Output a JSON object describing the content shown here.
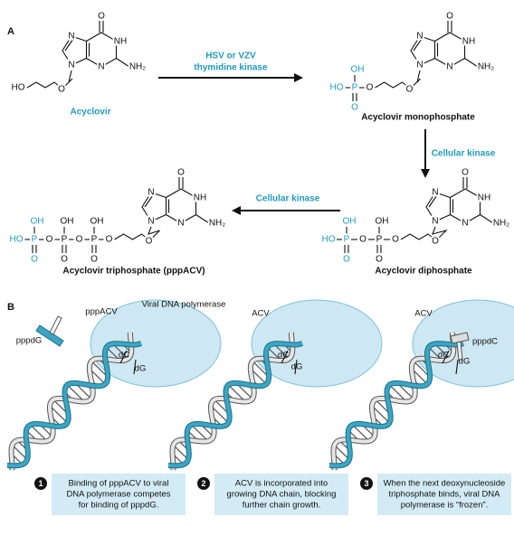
{
  "panel_a": {
    "label": "A",
    "molecules": [
      {
        "name": "Acyclovir",
        "atoms": [
          "O",
          "N",
          "NH",
          "N",
          "N",
          "NH₂",
          "HO",
          "O"
        ]
      },
      {
        "name": "Acyclovir monophosphate",
        "atoms": [
          "O",
          "N",
          "NH",
          "N",
          "N",
          "NH₂",
          "HO",
          "OH",
          "P",
          "O",
          "O",
          "O"
        ]
      },
      {
        "name": "Acyclovir diphosphate",
        "atoms": [
          "O",
          "N",
          "NH",
          "N",
          "N",
          "NH₂",
          "HO",
          "OH",
          "P",
          "O",
          "O",
          "OH",
          "P",
          "O",
          "O",
          "O"
        ]
      },
      {
        "name": "Acyclovir triphosphate (pppACV)",
        "atoms": [
          "O",
          "N",
          "NH",
          "N",
          "N",
          "NH₂",
          "HO",
          "OH",
          "P",
          "O",
          "O",
          "OH",
          "P",
          "O",
          "O",
          "OH",
          "P",
          "O",
          "O",
          "O"
        ]
      }
    ],
    "steps": [
      {
        "lines": [
          "HSV or VZV",
          "thymidine kinase"
        ]
      },
      {
        "lines": [
          "Cellular kinase"
        ]
      },
      {
        "lines": [
          "Cellular kinase"
        ]
      }
    ]
  },
  "panel_b": {
    "label": "B",
    "frames": [
      {
        "labels": [
          "pppdG",
          "pppACV",
          "Viral DNA polymerase",
          "dC",
          "dG"
        ],
        "number": 1,
        "caption": [
          "Binding of pppACV to viral",
          "DNA polymerase competes",
          "for binding of pppdG."
        ]
      },
      {
        "labels": [
          "ACV",
          "dC",
          "dG"
        ],
        "number": 2,
        "caption": [
          "ACV is incorporated into",
          "growing DNA chain, blocking",
          "further chain growth."
        ]
      },
      {
        "labels": [
          "ACV",
          "pppdC",
          "dC",
          "dG"
        ],
        "number": 3,
        "caption": [
          "When the next deoxynucleoside",
          "triphosphate binds, viral DNA",
          "polymerase is “frozen”."
        ]
      }
    ]
  }
}
